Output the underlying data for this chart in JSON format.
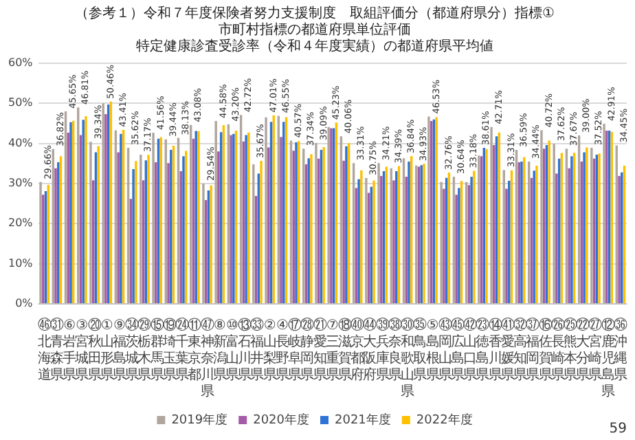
{
  "chart_data": {
    "type": "bar",
    "title": "（参考１）令和７年度保険者努力支援制度　取組評価分（都道府県分）指標①　市町村指標の都道府県単位評価",
    "subtitle": "特定健康診査受診率（令和４年度実績）の都道府県平均値",
    "categories": [
      "㊻北海道",
      "㉛青森県",
      "⑥岩手県",
      "③宮城県",
      "⑳秋田県",
      "①山形県",
      "⑨福島県",
      "㉞茨城県",
      "㉙栃木県",
      "⑮群馬県",
      "⑲埼玉県",
      "㉔千葉県",
      "⑪東京都",
      "㊼神奈川県",
      "⑧新潟県",
      "⑩富山県",
      "⑬石川県",
      "㉝福井県",
      "②山梨県",
      "④長野県",
      "⑰岐阜県",
      "㉘静岡県",
      "㉑愛知県",
      "⑦三重県",
      "⑱滋賀県",
      "㊵京都府",
      "㊹大阪府",
      "㊴兵庫県",
      "㊳奈良県",
      "㉚和歌山県",
      "㉟鳥取県",
      "⑤島根県",
      "㊸岡山県",
      "㊺広島県",
      "㊷山口県",
      "㉓徳島県",
      "⑭香川県",
      "㊶愛媛県",
      "㉜高知県",
      "㊲福岡県",
      "⑯佐賀県",
      "㉖長崎県",
      "㉕熊本県",
      "㉒大分県",
      "㉗宮崎県",
      "⑫鹿児島県",
      "㊱沖縄県"
    ],
    "series": [
      {
        "name": "2019年度",
        "color": "#b1a69e",
        "values": [
          30.4,
          38.6,
          48.0,
          49.0,
          40.4,
          50.0,
          43.3,
          38.9,
          37.2,
          42.7,
          41.0,
          41.4,
          44.6,
          30.0,
          45.6,
          44.8,
          47.1,
          34.8,
          46.5,
          46.9,
          40.7,
          38.7,
          40.1,
          44.1,
          41.8,
          35.1,
          31.4,
          35.1,
          33.8,
          36.3,
          34.5,
          46.7,
          30.4,
          31.7,
          30.4,
          37.0,
          44.1,
          33.4,
          38.4,
          35.5,
          43.3,
          39.9,
          38.7,
          42.0,
          38.9,
          44.9,
          39.5
        ]
      },
      {
        "name": "2020年度",
        "color": "#a65ba9",
        "values": [
          27.2,
          33.8,
          42.7,
          42.1,
          30.8,
          47.3,
          37.8,
          26.2,
          30.8,
          35.3,
          35.1,
          33.1,
          41.2,
          25.9,
          38.0,
          42.1,
          40.5,
          26.9,
          39.0,
          41.6,
          38.2,
          34.8,
          36.2,
          43.8,
          35.7,
          28.9,
          27.7,
          31.9,
          30.8,
          31.7,
          34.2,
          45.6,
          28.7,
          27.2,
          29.6,
          36.8,
          39.6,
          28.7,
          35.3,
          31.4,
          38.7,
          32.5,
          33.8,
          35.5,
          36.2,
          43.2,
          31.9
        ]
      },
      {
        "name": "2021年度",
        "color": "#2f74d4",
        "values": [
          28.1,
          35.3,
          45.3,
          45.9,
          37.8,
          49.7,
          42.4,
          33.6,
          35.8,
          41.2,
          38.4,
          36.8,
          43.1,
          28.3,
          42.8,
          42.4,
          42.1,
          32.5,
          45.4,
          45.4,
          40.3,
          36.3,
          38.4,
          43.8,
          39.3,
          31.1,
          29.2,
          33.1,
          33.1,
          35.5,
          34.6,
          46.0,
          31.4,
          28.9,
          31.7,
          38.9,
          41.8,
          30.7,
          35.5,
          33.2,
          39.6,
          36.2,
          36.8,
          37.8,
          37.2,
          43.2,
          32.8
        ]
      },
      {
        "name": "2022年度",
        "color": "#ffc000",
        "values": [
          29.66,
          36.82,
          45.65,
          46.81,
          39.34,
          50.46,
          43.41,
          35.62,
          37.17,
          41.56,
          39.44,
          38.13,
          43.08,
          29.54,
          44.58,
          43.2,
          42.72,
          35.67,
          47.01,
          46.55,
          40.57,
          37.34,
          39.09,
          45.23,
          40.06,
          33.31,
          30.75,
          34.21,
          34.39,
          36.84,
          34.93,
          46.53,
          32.76,
          30.64,
          33.18,
          38.61,
          42.71,
          33.31,
          36.59,
          34.44,
          40.72,
          37.62,
          37.67,
          39.0,
          37.52,
          42.91,
          34.45
        ],
        "value_labels": [
          "29.66%",
          "36.82%",
          "45.65%",
          "46.81%",
          "39.34%",
          "50.46%",
          "43.41%",
          "35.62%",
          "37.17%",
          "41.56%",
          "39.44%",
          "38.13%",
          "43.08%",
          "29.54%",
          "44.58%",
          "43.20%",
          "42.72%",
          "35.67%",
          "47.01%",
          "46.55%",
          "40.57%",
          "37.34%",
          "39.09%",
          "45.23%",
          "40.06%",
          "33.31%",
          "30.75%",
          "34.21%",
          "34.39%",
          "36.84%",
          "34.93%",
          "46.53%",
          "32.76%",
          "30.64%",
          "33.18%",
          "38.61%",
          "42.71%",
          "33.31%",
          "36.59%",
          "34.44%",
          "40.72%",
          "37.62%",
          "37.67%",
          "39.00%",
          "37.52%",
          "42.91%",
          "34.45%"
        ]
      }
    ],
    "ylim": [
      0,
      60
    ],
    "yticks": [
      {
        "value": 0,
        "label": "0%"
      },
      {
        "value": 10,
        "label": "10%"
      },
      {
        "value": 20,
        "label": "20%"
      },
      {
        "value": 30,
        "label": "30%"
      },
      {
        "value": 40,
        "label": "40%"
      },
      {
        "value": 50,
        "label": "50%"
      },
      {
        "value": 60,
        "label": "60%"
      }
    ],
    "grid": "y",
    "legend": "bottom",
    "annotations": [
      "59"
    ]
  }
}
